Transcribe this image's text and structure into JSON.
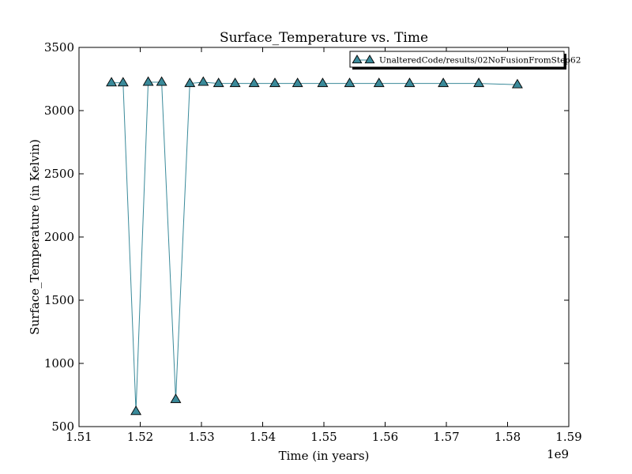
{
  "chart_data": {
    "type": "line",
    "title": "Surface_Temperature vs. Time",
    "xlabel": "Time (in years)",
    "ylabel": "Surface_Temperature (in Kelvin)",
    "x_offset_label": "1e9",
    "xlim": [
      1.51,
      1.59
    ],
    "ylim": [
      500,
      3500
    ],
    "x_ticks": [
      1.51,
      1.52,
      1.53,
      1.54,
      1.55,
      1.56,
      1.57,
      1.58,
      1.59
    ],
    "x_tick_labels": [
      "1.51",
      "1.52",
      "1.53",
      "1.54",
      "1.55",
      "1.56",
      "1.57",
      "1.58",
      "1.59"
    ],
    "y_ticks": [
      500,
      1000,
      1500,
      2000,
      2500,
      3000,
      3500
    ],
    "y_tick_labels": [
      "500",
      "1000",
      "1500",
      "2000",
      "2500",
      "3000",
      "3500"
    ],
    "grid": false,
    "legend_position": "top-right",
    "series": [
      {
        "name": "UnalteredCode/results/02NoFusionFromStep62",
        "color": "#3a8a9a",
        "marker": "triangle",
        "x": [
          1.5153,
          1.5172,
          1.5193,
          1.5213,
          1.5235,
          1.5258,
          1.5281,
          1.5303,
          1.5328,
          1.5355,
          1.5386,
          1.542,
          1.5457,
          1.5498,
          1.5542,
          1.559,
          1.564,
          1.5695,
          1.5753,
          1.5816
        ],
        "y": [
          3220,
          3220,
          620,
          3225,
          3225,
          715,
          3215,
          3225,
          3215,
          3215,
          3215,
          3215,
          3215,
          3215,
          3215,
          3215,
          3215,
          3215,
          3215,
          3205
        ]
      }
    ]
  }
}
